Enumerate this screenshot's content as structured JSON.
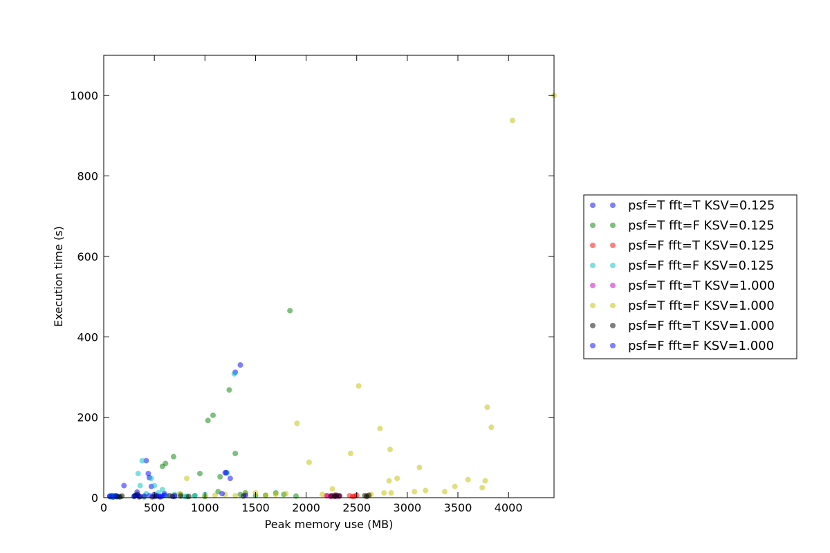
{
  "chart_data": {
    "type": "scatter",
    "title": "",
    "xlabel": "Peak memory use (MB)",
    "ylabel": "Execution time (s)",
    "xlim": [
      0,
      4450
    ],
    "ylim": [
      0,
      1100
    ],
    "xticks": [
      0,
      500,
      1000,
      1500,
      2000,
      2500,
      3000,
      3500,
      4000
    ],
    "yticks": [
      0,
      200,
      400,
      600,
      800,
      1000
    ],
    "grid": false,
    "legend_position": "right, outside plot area",
    "series": [
      {
        "name": "psf=T fft=T KSV=0.125",
        "color": "#0000ff",
        "points": [
          [
            60,
            3
          ],
          [
            80,
            5
          ],
          [
            95,
            2
          ],
          [
            110,
            4
          ],
          [
            130,
            3
          ],
          [
            200,
            30
          ],
          [
            310,
            5
          ],
          [
            330,
            14
          ],
          [
            350,
            2
          ],
          [
            420,
            92
          ],
          [
            440,
            60
          ],
          [
            450,
            50
          ],
          [
            470,
            28
          ],
          [
            500,
            3
          ],
          [
            530,
            5
          ],
          [
            560,
            2
          ],
          [
            580,
            4
          ],
          [
            600,
            10
          ],
          [
            700,
            3
          ],
          [
            1300,
            312
          ],
          [
            1350,
            330
          ],
          [
            1250,
            48
          ],
          [
            1200,
            62
          ]
        ]
      },
      {
        "name": "psf=T fft=F KSV=0.125",
        "color": "#008000",
        "points": [
          [
            70,
            2
          ],
          [
            90,
            5
          ],
          [
            150,
            3
          ],
          [
            300,
            4
          ],
          [
            400,
            2
          ],
          [
            580,
            78
          ],
          [
            610,
            85
          ],
          [
            690,
            102
          ],
          [
            760,
            8
          ],
          [
            820,
            3
          ],
          [
            900,
            5
          ],
          [
            950,
            60
          ],
          [
            1000,
            3
          ],
          [
            1030,
            192
          ],
          [
            1080,
            205
          ],
          [
            1130,
            15
          ],
          [
            1150,
            52
          ],
          [
            1240,
            268
          ],
          [
            1300,
            110
          ],
          [
            1350,
            8
          ],
          [
            1400,
            12
          ],
          [
            1500,
            5
          ],
          [
            1600,
            6
          ],
          [
            1700,
            12
          ],
          [
            1780,
            8
          ],
          [
            1840,
            465
          ],
          [
            1900,
            4
          ]
        ]
      },
      {
        "name": "psf=F fft=T KSV=0.125",
        "color": "#ff0000",
        "points": [
          [
            2200,
            5
          ],
          [
            2240,
            3
          ],
          [
            2280,
            6
          ],
          [
            2320,
            4
          ],
          [
            2430,
            5
          ],
          [
            2460,
            3
          ],
          [
            2480,
            4
          ],
          [
            2500,
            6
          ]
        ]
      },
      {
        "name": "psf=F fft=F KSV=0.125",
        "color": "#00bfbf",
        "points": [
          [
            80,
            3
          ],
          [
            100,
            4
          ],
          [
            130,
            2
          ],
          [
            340,
            60
          ],
          [
            360,
            30
          ],
          [
            380,
            92
          ],
          [
            420,
            10
          ],
          [
            470,
            48
          ],
          [
            500,
            30
          ],
          [
            540,
            12
          ],
          [
            580,
            20
          ],
          [
            620,
            5
          ],
          [
            700,
            8
          ],
          [
            800,
            3
          ],
          [
            900,
            5
          ],
          [
            1000,
            8
          ],
          [
            1290,
            308
          ],
          [
            1220,
            62
          ]
        ]
      },
      {
        "name": "psf=T fft=T KSV=1.000",
        "color": "#bf00bf",
        "points": [
          [
            2210,
            5
          ],
          [
            2250,
            4
          ],
          [
            2290,
            6
          ],
          [
            2300,
            3
          ],
          [
            2330,
            5
          ]
        ]
      },
      {
        "name": "psf=T fft=F KSV=1.000",
        "color": "#bfbf00",
        "points": [
          [
            700,
            5
          ],
          [
            750,
            10
          ],
          [
            820,
            48
          ],
          [
            1000,
            4
          ],
          [
            1100,
            6
          ],
          [
            1200,
            8
          ],
          [
            1300,
            5
          ],
          [
            1400,
            8
          ],
          [
            1500,
            12
          ],
          [
            1600,
            5
          ],
          [
            1700,
            8
          ],
          [
            1800,
            10
          ],
          [
            1910,
            185
          ],
          [
            2030,
            88
          ],
          [
            2160,
            8
          ],
          [
            2260,
            22
          ],
          [
            2440,
            110
          ],
          [
            2520,
            278
          ],
          [
            2600,
            5
          ],
          [
            2640,
            8
          ],
          [
            2730,
            172
          ],
          [
            2770,
            12
          ],
          [
            2820,
            42
          ],
          [
            2830,
            120
          ],
          [
            2840,
            12
          ],
          [
            2900,
            48
          ],
          [
            3070,
            15
          ],
          [
            3120,
            75
          ],
          [
            3180,
            18
          ],
          [
            3370,
            15
          ],
          [
            3470,
            28
          ],
          [
            3600,
            45
          ],
          [
            3740,
            25
          ],
          [
            3770,
            42
          ],
          [
            3790,
            225
          ],
          [
            3830,
            175
          ],
          [
            4040,
            938
          ],
          [
            4450,
            1000
          ]
        ]
      },
      {
        "name": "psf=F fft=T KSV=1.000",
        "color": "#000000",
        "points": [
          [
            130,
            3
          ],
          [
            160,
            2
          ],
          [
            180,
            4
          ],
          [
            310,
            5
          ],
          [
            330,
            8
          ],
          [
            360,
            3
          ],
          [
            480,
            2
          ],
          [
            520,
            4
          ],
          [
            650,
            5
          ],
          [
            680,
            3
          ],
          [
            760,
            4
          ],
          [
            840,
            3
          ],
          [
            1380,
            4
          ],
          [
            2250,
            5
          ],
          [
            2280,
            3
          ],
          [
            2300,
            6
          ],
          [
            2330,
            4
          ],
          [
            2580,
            5
          ],
          [
            2600,
            3
          ],
          [
            2620,
            6
          ]
        ]
      },
      {
        "name": "psf=F fft=F KSV=1.000",
        "color": "#0000ff",
        "points": [
          [
            60,
            4
          ],
          [
            90,
            2
          ],
          [
            120,
            5
          ],
          [
            300,
            3
          ],
          [
            340,
            6
          ],
          [
            400,
            4
          ],
          [
            450,
            5
          ],
          [
            500,
            8
          ],
          [
            550,
            3
          ],
          [
            600,
            6
          ],
          [
            700,
            5
          ],
          [
            1170,
            10
          ],
          [
            1210,
            62
          ],
          [
            1400,
            6
          ]
        ]
      }
    ]
  }
}
